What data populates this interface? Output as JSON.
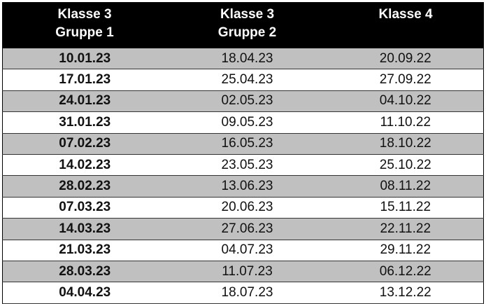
{
  "table": {
    "header": [
      [
        "Klasse 3",
        "Gruppe 1"
      ],
      [
        "Klasse 3",
        "Gruppe 2"
      ],
      [
        "Klasse 4"
      ]
    ],
    "rows": [
      [
        "10.01.23",
        "18.04.23",
        "20.09.22"
      ],
      [
        "17.01.23",
        "25.04.23",
        "27.09.22"
      ],
      [
        "24.01.23",
        "02.05.23",
        "04.10.22"
      ],
      [
        "31.01.23",
        "09.05.23",
        "11.10.22"
      ],
      [
        "07.02.23",
        "16.05.23",
        "18.10.22"
      ],
      [
        "14.02.23",
        "23.05.23",
        "25.10.22"
      ],
      [
        "28.02.23",
        "13.06.23",
        "08.11.22"
      ],
      [
        "07.03.23",
        "20.06.23",
        "15.11.22"
      ],
      [
        "14.03.23",
        "27.06.23",
        "22.11.22"
      ],
      [
        "21.03.23",
        "04.07.23",
        "29.11.22"
      ],
      [
        "28.03.23",
        "11.07.23",
        "06.12.22"
      ],
      [
        "04.04.23",
        "18.07.23",
        "13.12.22"
      ]
    ]
  }
}
